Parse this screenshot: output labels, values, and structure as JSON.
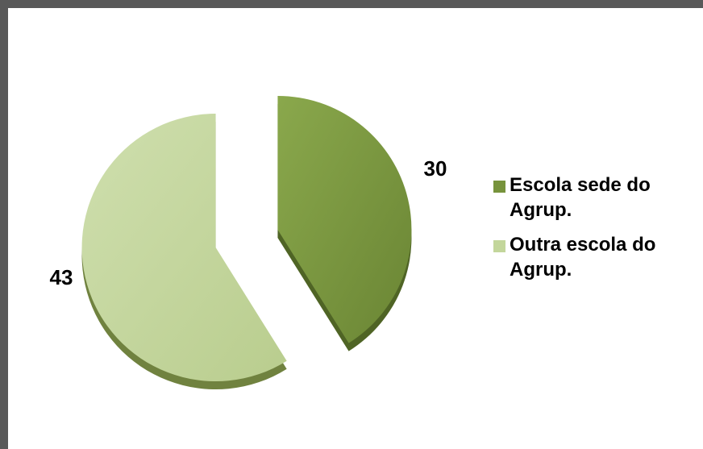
{
  "chart_data": {
    "type": "pie",
    "title": "",
    "categories": [
      "Escola sede do Agrup.",
      "Outra escola do Agrup."
    ],
    "values": [
      30,
      43
    ],
    "colors": [
      "#77933c",
      "#c3d69b"
    ],
    "data_labels": [
      "30",
      "43"
    ],
    "exploded": true,
    "style": "3d-shadow",
    "legend": {
      "position": "right",
      "entries": [
        "Escola sede do Agrup.",
        "Outra escola do Agrup."
      ]
    }
  }
}
